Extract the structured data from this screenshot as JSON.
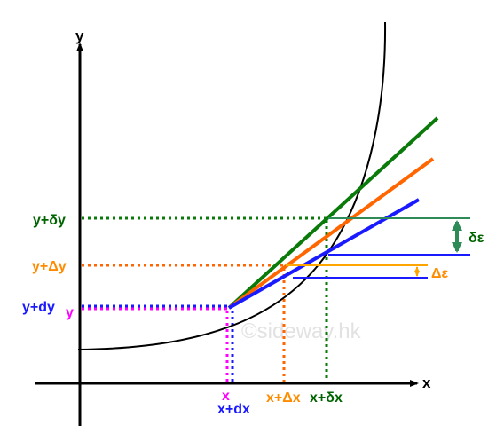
{
  "axes": {
    "x_label": "x",
    "y_label": "y"
  },
  "y_labels": {
    "y_delta": "y+δy",
    "y_Delta": "y+Δy",
    "y_dy": "y+dy",
    "y": "y"
  },
  "x_labels": {
    "x": "x",
    "x_dx": "x+dx",
    "x_Delta": "x+Δx",
    "x_delta": "x+δx"
  },
  "errors": {
    "delta_eps": "δε",
    "Delta_eps": "Δε"
  },
  "watermark": "©sideway.hk",
  "colors": {
    "curve": "#000000",
    "green": "#0a7a0a",
    "orange": "#ff6600",
    "blue": "#1a1aff",
    "magenta": "#ff00ff",
    "dark_green_text": "#006400",
    "orange_text": "#ff8c00",
    "teal_arrow": "#2e8b57",
    "amber": "#ffa500",
    "watermark": "#e2e2e2"
  }
}
